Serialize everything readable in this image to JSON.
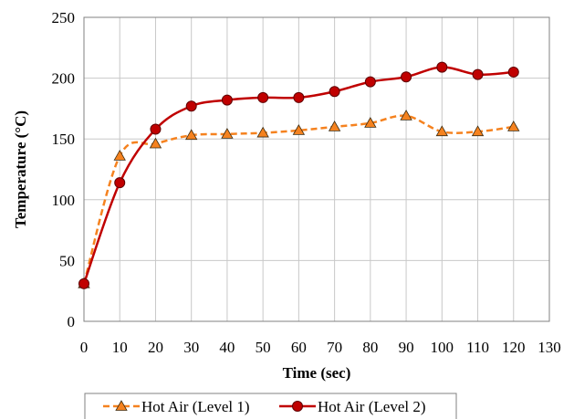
{
  "chart_data": {
    "type": "line",
    "title": "",
    "xlabel": "Time (sec)",
    "ylabel": "Temperature (°C)",
    "xlim": [
      0,
      130
    ],
    "ylim": [
      0,
      250
    ],
    "xticks": [
      0,
      10,
      20,
      30,
      40,
      50,
      60,
      70,
      80,
      90,
      100,
      110,
      120,
      130
    ],
    "yticks": [
      0,
      50,
      100,
      150,
      200,
      250
    ],
    "grid": true,
    "legend_position": "bottom",
    "x": [
      0,
      10,
      20,
      30,
      40,
      50,
      60,
      70,
      80,
      90,
      100,
      110,
      120
    ],
    "series": [
      {
        "name": "Hot Air (Level 1)",
        "values": [
          31,
          136,
          146,
          153,
          154,
          155,
          157,
          160,
          163,
          169,
          156,
          156,
          160
        ],
        "color": "#F5821F",
        "line_style": "dashed",
        "marker": "triangle",
        "marker_fill": "#F5821F"
      },
      {
        "name": "Hot Air (Level 2)",
        "values": [
          31,
          114,
          158,
          177,
          182,
          184,
          184,
          189,
          197,
          201,
          209,
          203,
          205
        ],
        "color": "#C00000",
        "line_style": "solid",
        "marker": "circle",
        "marker_fill": "#C00000"
      }
    ]
  }
}
